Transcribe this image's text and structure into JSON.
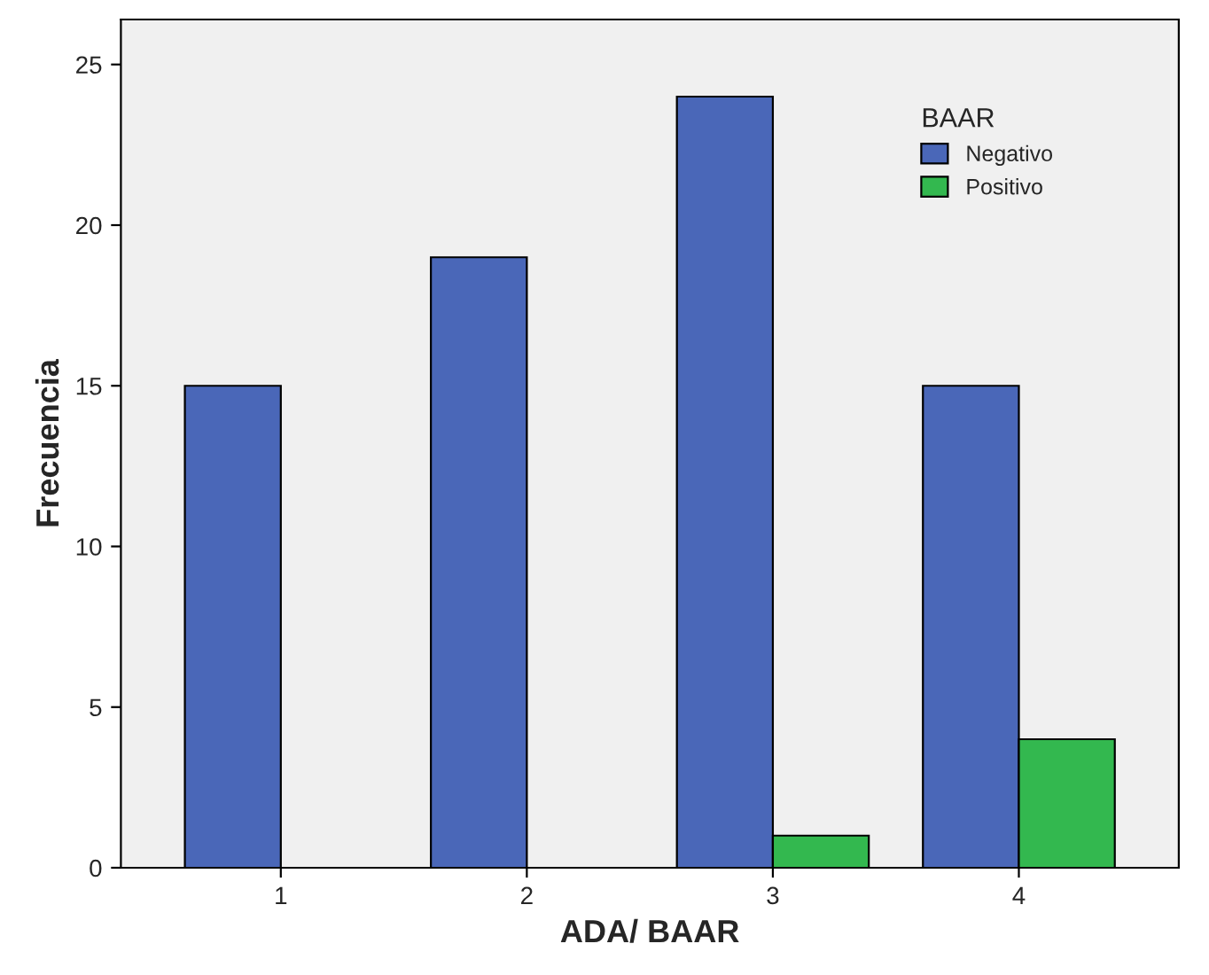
{
  "chart_data": {
    "type": "bar",
    "xlabel": "ADA/ BAAR",
    "ylabel": "Frecuencia",
    "legend_title": "BAAR",
    "legend": "top right",
    "categories": [
      "1",
      "2",
      "3",
      "4"
    ],
    "series": [
      {
        "name": "Negativo",
        "color": "#4a67b8",
        "values": [
          15,
          19,
          24,
          15
        ]
      },
      {
        "name": "Positivo",
        "color": "#33b84f",
        "values": [
          null,
          null,
          1,
          4
        ]
      }
    ],
    "ylim": [
      0,
      26.4
    ],
    "yticks": [
      0,
      5,
      10,
      15,
      20,
      25
    ],
    "grid": false
  }
}
